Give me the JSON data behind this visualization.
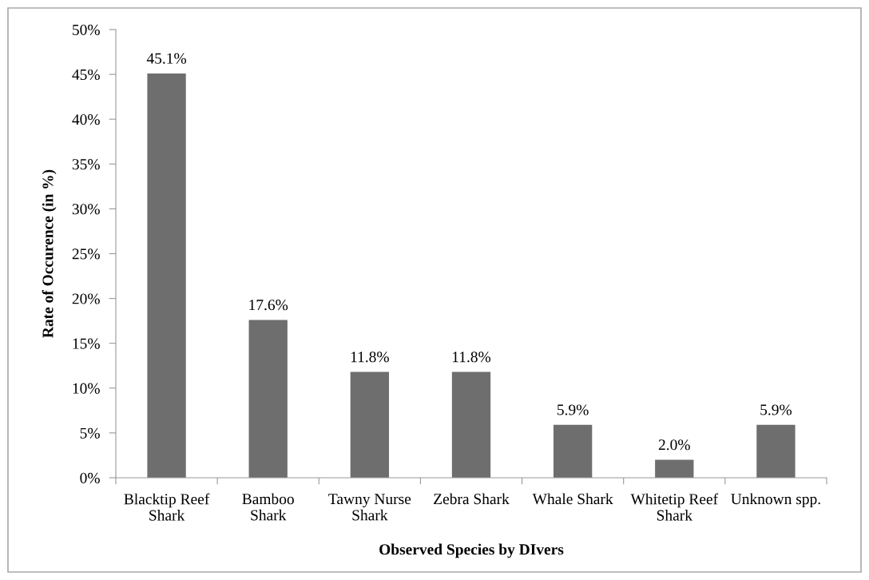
{
  "chart_data": {
    "type": "bar",
    "xlabel": "Observed Species by DIvers",
    "ylabel": "Rate of Occurence (in %)",
    "categories": [
      "Blacktip Reef\nShark",
      "Bamboo\nShark",
      "Tawny Nurse\nShark",
      "Zebra Shark",
      "Whale Shark",
      "Whitetip Reef\nShark",
      "Unknown spp."
    ],
    "values": [
      45.1,
      17.6,
      11.8,
      11.8,
      5.9,
      2.0,
      5.9
    ],
    "value_labels": [
      "45.1%",
      "17.6%",
      "11.8%",
      "11.8%",
      "5.9%",
      "2.0%",
      "5.9%"
    ],
    "color": "#6e6e6e",
    "ylim": [
      0,
      50
    ],
    "yticks": [
      {
        "value": 0,
        "label": "0%"
      },
      {
        "value": 5,
        "label": "5%"
      },
      {
        "value": 10,
        "label": "10%"
      },
      {
        "value": 15,
        "label": "15%"
      },
      {
        "value": 20,
        "label": "20%"
      },
      {
        "value": 25,
        "label": "25%"
      },
      {
        "value": 30,
        "label": "30%"
      },
      {
        "value": 35,
        "label": "35%"
      },
      {
        "value": 40,
        "label": "40%"
      },
      {
        "value": 45,
        "label": "45%"
      },
      {
        "value": 50,
        "label": "50%"
      }
    ],
    "grid": false,
    "legend": false
  }
}
